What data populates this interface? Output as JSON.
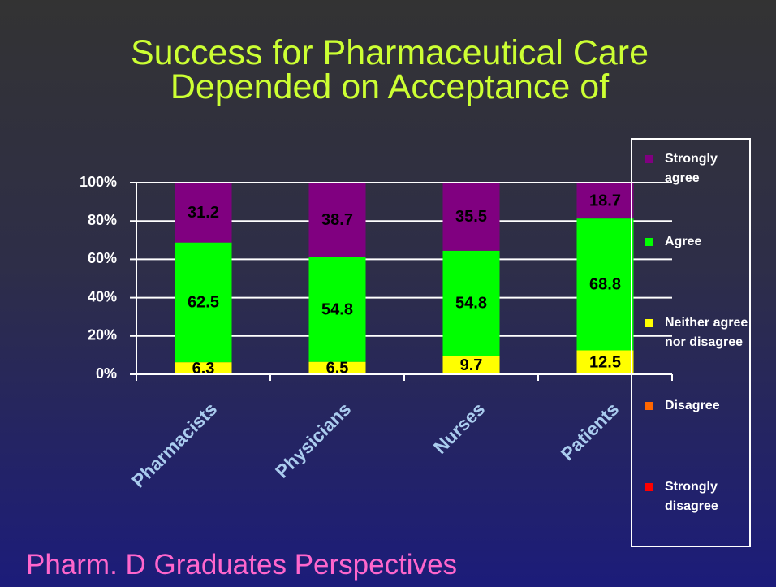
{
  "chart_data": {
    "type": "stacked_bar",
    "title": "Success for Pharmaceutical Care Depended on Acceptance of",
    "subtitle": "Pharm. D Graduates Perspectives",
    "categories": [
      "Pharmacists",
      "Physicians",
      "Nurses",
      "Patients"
    ],
    "series": [
      {
        "name": "Strongly agree",
        "color": "#800080",
        "values": [
          31.2,
          38.7,
          35.5,
          18.7
        ]
      },
      {
        "name": "Agree",
        "color": "#00ff00",
        "values": [
          62.5,
          54.8,
          54.8,
          68.8
        ]
      },
      {
        "name": "Neither agree nor disagree",
        "color": "#ffff00",
        "values": [
          6.3,
          6.5,
          9.7,
          12.5
        ]
      },
      {
        "name": "Disagree",
        "color": "#ff6600",
        "values": [
          0,
          0,
          0,
          0
        ]
      },
      {
        "name": "Strongly disagree",
        "color": "#ff0000",
        "values": [
          0,
          0,
          0,
          0
        ]
      }
    ],
    "ylim": [
      0,
      100
    ],
    "yticks": [
      {
        "value": 0,
        "label": "0%"
      },
      {
        "value": 20,
        "label": "20%"
      },
      {
        "value": 40,
        "label": "40%"
      },
      {
        "value": 60,
        "label": "60%"
      },
      {
        "value": 80,
        "label": "80%"
      },
      {
        "value": 100,
        "label": "100%"
      }
    ],
    "grid": true,
    "legend": "right"
  }
}
